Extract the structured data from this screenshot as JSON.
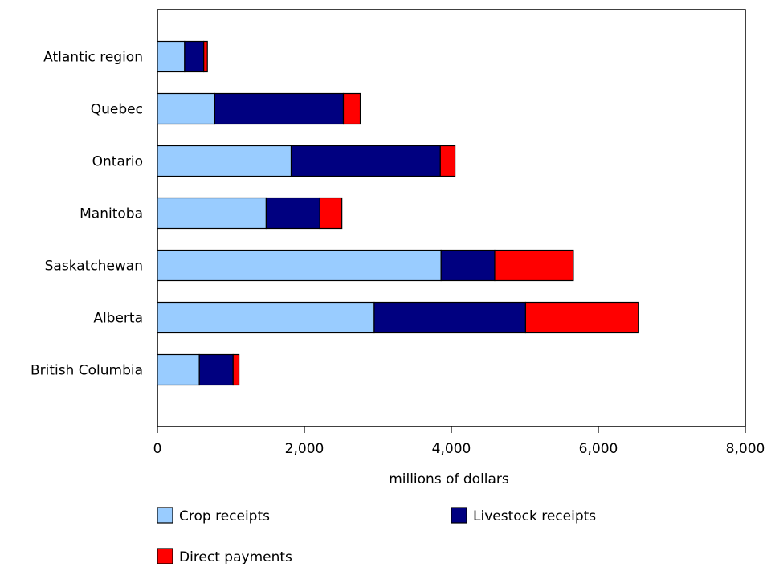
{
  "chart_data": {
    "type": "bar",
    "orientation": "horizontal",
    "stacked": true,
    "title": "",
    "xlabel": "millions of dollars",
    "ylabel": "",
    "xlim": [
      0,
      8000
    ],
    "x_ticks": [
      0,
      2000,
      4000,
      6000,
      8000
    ],
    "x_tick_labels": [
      "0",
      "2,000",
      "4,000",
      "6,000",
      "8,000"
    ],
    "categories": [
      "Atlantic region",
      "Quebec",
      "Ontario",
      "Manitoba",
      "Saskatchewan",
      "Alberta",
      "British Columbia"
    ],
    "series": [
      {
        "name": "Crop receipts",
        "color": "#99ccff",
        "values": [
          370,
          780,
          1820,
          1480,
          3860,
          2950,
          570
        ]
      },
      {
        "name": "Livestock receipts",
        "color": "#000080",
        "values": [
          260,
          1750,
          2030,
          730,
          730,
          2060,
          460
        ]
      },
      {
        "name": "Direct payments",
        "color": "#ff0000",
        "values": [
          50,
          230,
          200,
          300,
          1070,
          1540,
          80
        ]
      }
    ],
    "grid": false,
    "legend_position": "bottom"
  }
}
